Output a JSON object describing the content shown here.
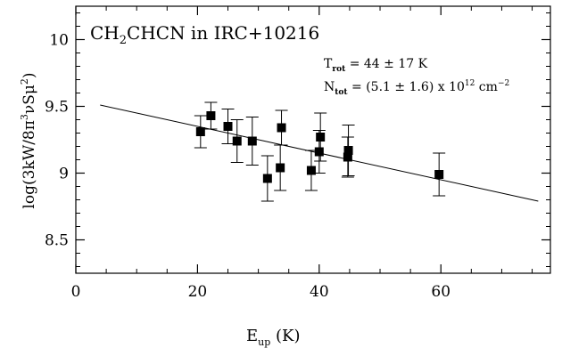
{
  "chart_data": {
    "type": "scatter",
    "title_parts": {
      "pre": "CH",
      "sub1": "2",
      "mid": "CHCN in IRC+10216"
    },
    "annotation_trot": {
      "label": "T",
      "sub": "rot",
      "text": " = 44 ± 17 K"
    },
    "annotation_ntot": {
      "label": "N",
      "sub": "tot",
      "text1": " = (5.1 ± 1.6) x 10",
      "sup1": "12",
      "text2": " cm",
      "sup2": "−2"
    },
    "xlabel": {
      "main": "E",
      "sub": "up",
      "rest": " (K)"
    },
    "ylabel": {
      "pre": "log(3kW/8π",
      "sup1": "3",
      "mid": "νSμ",
      "sup2": "2",
      "post": ")"
    },
    "xlim": [
      0,
      78
    ],
    "ylim": [
      8.25,
      10.25
    ],
    "x_ticks": [
      0,
      20,
      40,
      60
    ],
    "x_tick_labels": [
      "0",
      "20",
      "40",
      "60"
    ],
    "y_ticks": [
      8.5,
      9,
      9.5,
      10
    ],
    "y_tick_labels": [
      "8.5",
      "9",
      "9.5",
      "10"
    ],
    "fit_line": {
      "x": [
        4,
        76
      ],
      "y": [
        9.51,
        8.79
      ]
    },
    "points": [
      {
        "x": 20.5,
        "y": 9.31,
        "err": 0.12
      },
      {
        "x": 22.2,
        "y": 9.43,
        "err": 0.1
      },
      {
        "x": 25.0,
        "y": 9.35,
        "err": 0.13
      },
      {
        "x": 26.5,
        "y": 9.24,
        "err": 0.16
      },
      {
        "x": 29.0,
        "y": 9.24,
        "err": 0.18
      },
      {
        "x": 31.5,
        "y": 8.96,
        "err": 0.17
      },
      {
        "x": 33.6,
        "y": 9.04,
        "err": 0.17
      },
      {
        "x": 33.8,
        "y": 9.34,
        "err": 0.13
      },
      {
        "x": 38.7,
        "y": 9.02,
        "err": 0.15
      },
      {
        "x": 40.0,
        "y": 9.16,
        "err": 0.16
      },
      {
        "x": 40.2,
        "y": 9.27,
        "err": 0.18
      },
      {
        "x": 44.7,
        "y": 9.12,
        "err": 0.15
      },
      {
        "x": 44.8,
        "y": 9.17,
        "err": 0.19
      },
      {
        "x": 59.7,
        "y": 8.99,
        "err": 0.16
      }
    ]
  }
}
